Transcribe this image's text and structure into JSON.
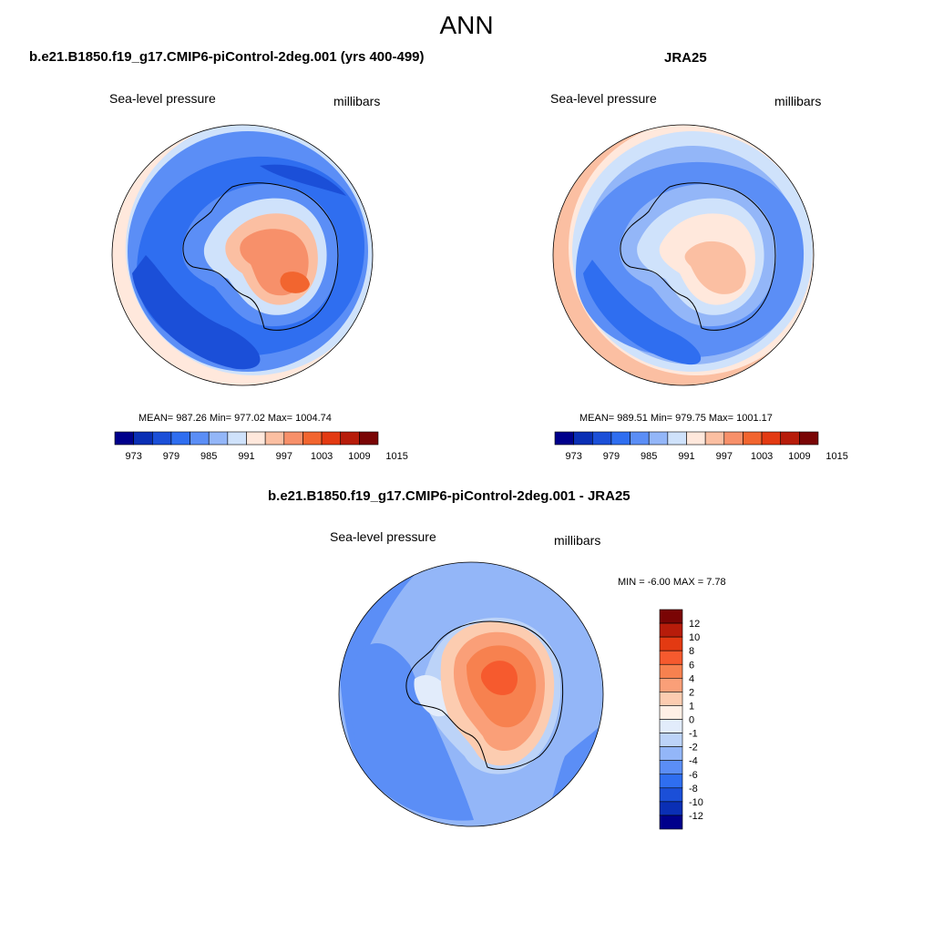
{
  "figure": {
    "main_title": "ANN",
    "palette_abs": [
      "#00008b",
      "#0a2fb5",
      "#1b4fd8",
      "#2f6ef0",
      "#5b8ef6",
      "#93b6f8",
      "#cfe2fb",
      "#ffe8dc",
      "#fbbfa2",
      "#f7906a",
      "#f2652f",
      "#e33a12",
      "#b71c0a",
      "#7a0505"
    ],
    "palette_diff": [
      "#7a0505",
      "#b71c0a",
      "#e33a12",
      "#f65a2e",
      "#f7814f",
      "#fa9f78",
      "#fcccb0",
      "#fff0e6",
      "#e2ecfb",
      "#bcd3f8",
      "#93b6f8",
      "#5b8ef6",
      "#2f6ef0",
      "#1b4fd8",
      "#0a2fb5",
      "#00008b"
    ]
  },
  "chart_data": [
    {
      "type": "heatmap",
      "title": "b.e21.B1850.f19_g17.CMIP6-piControl-2deg.001 (yrs 400-499)",
      "left_label": "Sea-level pressure",
      "right_label": "millibars",
      "stats": "MEAN= 987.26  Min= 977.02  Max= 1004.74",
      "mean": 987.26,
      "min": 977.02,
      "max": 1004.74,
      "colorbar_levels": [
        973,
        976,
        979,
        982,
        985,
        988,
        991,
        994,
        997,
        1000,
        1003,
        1006,
        1009,
        1012,
        1015
      ],
      "colorbar_tick_labels": [
        "973",
        "979",
        "985",
        "991",
        "997",
        "1003",
        "1009",
        "1015"
      ],
      "projection": "south polar stereographic"
    },
    {
      "type": "heatmap",
      "title": "JRA25",
      "left_label": "Sea-level pressure",
      "right_label": "millibars",
      "stats": "MEAN= 989.51  Min= 979.75  Max= 1001.17",
      "mean": 989.51,
      "min": 979.75,
      "max": 1001.17,
      "colorbar_levels": [
        973,
        976,
        979,
        982,
        985,
        988,
        991,
        994,
        997,
        1000,
        1003,
        1006,
        1009,
        1012,
        1015
      ],
      "colorbar_tick_labels": [
        "973",
        "979",
        "985",
        "991",
        "997",
        "1003",
        "1009",
        "1015"
      ],
      "projection": "south polar stereographic"
    },
    {
      "type": "heatmap",
      "title": "b.e21.B1850.f19_g17.CMIP6-piControl-2deg.001 - JRA25",
      "left_label": "Sea-level pressure",
      "right_label": "millibars",
      "stats": "MIN =  -6.00 MAX =   7.78",
      "min": -6.0,
      "max": 7.78,
      "colorbar_tick_labels": [
        "12",
        "10",
        "8",
        "6",
        "4",
        "2",
        "1",
        "0",
        "-1",
        "-2",
        "-4",
        "-6",
        "-8",
        "-10",
        "-12"
      ],
      "projection": "south polar stereographic"
    }
  ]
}
